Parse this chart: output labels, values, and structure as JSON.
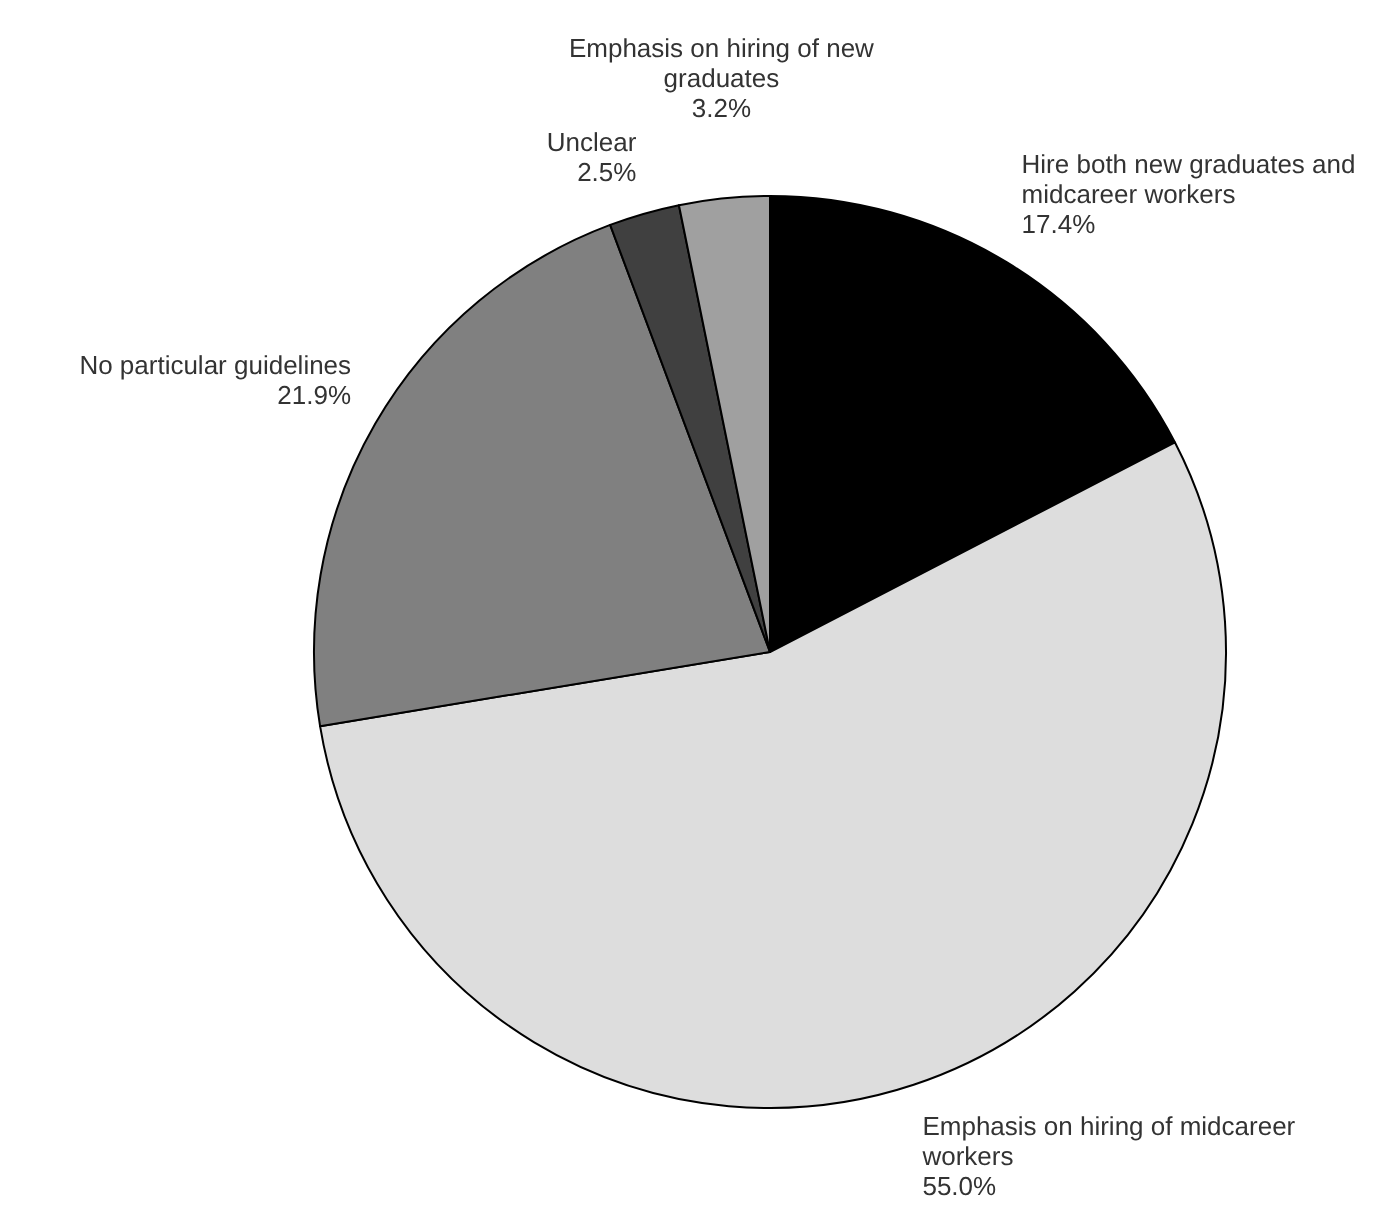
{
  "chart_data": {
    "type": "pie",
    "categories": [
      "Hire both new graduates and midcareer workers",
      "Emphasis on hiring of midcareer workers",
      "No particular guidelines",
      "Unclear",
      "Emphasis on hiring of new graduates"
    ],
    "values": [
      17.4,
      55.0,
      21.9,
      2.5,
      3.2
    ],
    "value_labels": [
      "17.4%",
      "55.0%",
      "21.9%",
      "2.5%",
      "3.2%"
    ],
    "colors": [
      "#000000",
      "#dddddd",
      "#808080",
      "#404040",
      "#a0a0a0"
    ]
  }
}
